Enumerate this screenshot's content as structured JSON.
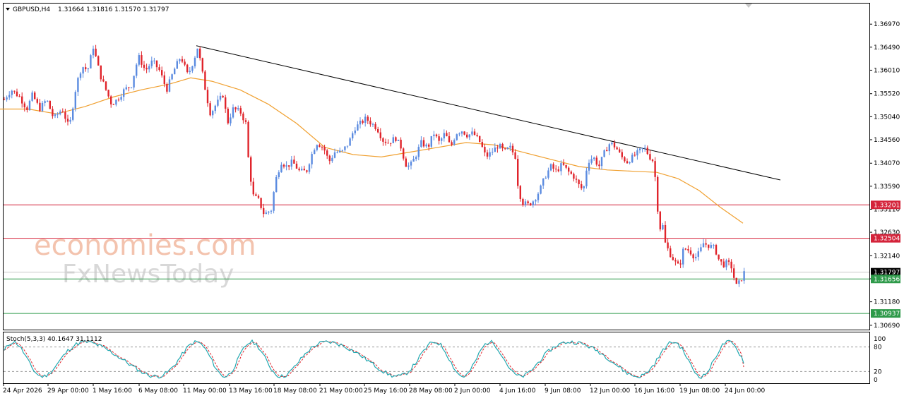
{
  "header": {
    "symbol": "GBPUSD,H4",
    "ohlc": "1.31664 1.31816 1.31570 1.31797"
  },
  "watermark": {
    "brand_line1": "economies.com",
    "brand_line2": "FxNewsToday"
  },
  "chart_data": {
    "type": "candlestick",
    "symbol": "GBPUSD",
    "timeframe": "H4",
    "ohlc": {
      "open": 1.31664,
      "high": 1.31816,
      "low": 1.3157,
      "close": 1.31797
    },
    "ylim": [
      1.306,
      1.374
    ],
    "y_ticks": [
      "1.36970",
      "1.36490",
      "1.36010",
      "1.35520",
      "1.35040",
      "1.34560",
      "1.34070",
      "1.33590",
      "1.33110",
      "1.32630",
      "1.32140",
      "1.31660",
      "1.31180",
      "1.30690"
    ],
    "x_ticks": [
      "24 Apr 2026",
      "29 Apr 00:00",
      "1 May 16:00",
      "6 May 08:00",
      "11 May 00:00",
      "13 May 16:00",
      "18 May 08:00",
      "21 May 00:00",
      "25 May 16:00",
      "28 May 08:00",
      "2 Jun 00:00",
      "4 Jun 16:00",
      "9 Jun 08:00",
      "12 Jun 00:00",
      "16 Jun 16:00",
      "19 Jun 08:00",
      "24 Jun 00:00"
    ],
    "price_path": [
      [
        0,
        1.349
      ],
      [
        6,
        1.354
      ],
      [
        16,
        1.356
      ],
      [
        28,
        1.3545
      ],
      [
        38,
        1.352
      ],
      [
        46,
        1.355
      ],
      [
        56,
        1.352
      ],
      [
        66,
        1.354
      ],
      [
        76,
        1.35
      ],
      [
        88,
        1.352
      ],
      [
        98,
        1.348
      ],
      [
        108,
        1.357
      ],
      [
        116,
        1.361
      ],
      [
        124,
        1.36
      ],
      [
        132,
        1.365
      ],
      [
        142,
        1.359
      ],
      [
        150,
        1.356
      ],
      [
        158,
        1.353
      ],
      [
        166,
        1.354
      ],
      [
        176,
        1.356
      ],
      [
        186,
        1.357
      ],
      [
        196,
        1.363
      ],
      [
        206,
        1.36
      ],
      [
        216,
        1.362
      ],
      [
        226,
        1.36
      ],
      [
        236,
        1.356
      ],
      [
        246,
        1.36
      ],
      [
        256,
        1.363
      ],
      [
        266,
        1.359
      ],
      [
        274,
        1.362
      ],
      [
        280,
        1.365
      ],
      [
        286,
        1.36
      ],
      [
        292,
        1.355
      ],
      [
        298,
        1.351
      ],
      [
        306,
        1.353
      ],
      [
        316,
        1.355
      ],
      [
        322,
        1.349
      ],
      [
        330,
        1.352
      ],
      [
        340,
        1.3515
      ],
      [
        348,
        1.349
      ],
      [
        352,
        1.341
      ],
      [
        358,
        1.334
      ],
      [
        366,
        1.333
      ],
      [
        374,
        1.33
      ],
      [
        384,
        1.331
      ],
      [
        390,
        1.337
      ],
      [
        398,
        1.341
      ],
      [
        406,
        1.34
      ],
      [
        414,
        1.341
      ],
      [
        424,
        1.339
      ],
      [
        434,
        1.339
      ],
      [
        440,
        1.342
      ],
      [
        448,
        1.345
      ],
      [
        458,
        1.344
      ],
      [
        466,
        1.341
      ],
      [
        474,
        1.343
      ],
      [
        484,
        1.343
      ],
      [
        494,
        1.345
      ],
      [
        502,
        1.348
      ],
      [
        510,
        1.349
      ],
      [
        518,
        1.35
      ],
      [
        526,
        1.349
      ],
      [
        534,
        1.348
      ],
      [
        542,
        1.3455
      ],
      [
        550,
        1.345
      ],
      [
        560,
        1.346
      ],
      [
        568,
        1.344
      ],
      [
        574,
        1.3405
      ],
      [
        580,
        1.34
      ],
      [
        588,
        1.342
      ],
      [
        596,
        1.345
      ],
      [
        606,
        1.344
      ],
      [
        614,
        1.347
      ],
      [
        622,
        1.345
      ],
      [
        630,
        1.347
      ],
      [
        638,
        1.344
      ],
      [
        646,
        1.347
      ],
      [
        654,
        1.3475
      ],
      [
        662,
        1.3465
      ],
      [
        670,
        1.347
      ],
      [
        680,
        1.345
      ],
      [
        688,
        1.342
      ],
      [
        696,
        1.343
      ],
      [
        706,
        1.3445
      ],
      [
        714,
        1.343
      ],
      [
        722,
        1.344
      ],
      [
        730,
        1.342
      ],
      [
        734,
        1.335
      ],
      [
        740,
        1.3325
      ],
      [
        748,
        1.332
      ],
      [
        756,
        1.333
      ],
      [
        764,
        1.335
      ],
      [
        772,
        1.338
      ],
      [
        780,
        1.34
      ],
      [
        788,
        1.339
      ],
      [
        796,
        1.3405
      ],
      [
        804,
        1.339
      ],
      [
        812,
        1.338
      ],
      [
        820,
        1.336
      ],
      [
        826,
        1.335
      ],
      [
        832,
        1.341
      ],
      [
        840,
        1.342
      ],
      [
        848,
        1.34
      ],
      [
        856,
        1.343
      ],
      [
        864,
        1.345
      ],
      [
        872,
        1.344
      ],
      [
        880,
        1.342
      ],
      [
        888,
        1.341
      ],
      [
        896,
        1.342
      ],
      [
        904,
        1.343
      ],
      [
        912,
        1.344
      ],
      [
        920,
        1.342
      ],
      [
        926,
        1.341
      ],
      [
        930,
        1.333
      ],
      [
        934,
        1.327
      ],
      [
        938,
        1.328
      ],
      [
        942,
        1.324
      ],
      [
        948,
        1.322
      ],
      [
        956,
        1.32
      ],
      [
        962,
        1.319
      ],
      [
        968,
        1.323
      ],
      [
        976,
        1.3225
      ],
      [
        984,
        1.321
      ],
      [
        990,
        1.322
      ],
      [
        996,
        1.324
      ],
      [
        1004,
        1.3235
      ],
      [
        1012,
        1.323
      ],
      [
        1018,
        1.3205
      ],
      [
        1024,
        1.3195
      ],
      [
        1030,
        1.32
      ],
      [
        1036,
        1.319
      ],
      [
        1042,
        1.315
      ],
      [
        1048,
        1.316
      ],
      [
        1054,
        1.318
      ]
    ],
    "moving_average": [
      [
        0,
        1.352
      ],
      [
        40,
        1.352
      ],
      [
        80,
        1.351
      ],
      [
        120,
        1.3525
      ],
      [
        160,
        1.3545
      ],
      [
        200,
        1.356
      ],
      [
        240,
        1.3572
      ],
      [
        270,
        1.3585
      ],
      [
        300,
        1.3578
      ],
      [
        340,
        1.356
      ],
      [
        380,
        1.353
      ],
      [
        420,
        1.349
      ],
      [
        460,
        1.344
      ],
      [
        500,
        1.3425
      ],
      [
        540,
        1.342
      ],
      [
        580,
        1.343
      ],
      [
        620,
        1.344
      ],
      [
        660,
        1.345
      ],
      [
        700,
        1.3445
      ],
      [
        740,
        1.343
      ],
      [
        780,
        1.3415
      ],
      [
        820,
        1.34
      ],
      [
        860,
        1.3393
      ],
      [
        900,
        1.339
      ],
      [
        930,
        1.3388
      ],
      [
        960,
        1.3375
      ],
      [
        990,
        1.335
      ],
      [
        1020,
        1.3315
      ],
      [
        1052,
        1.3282
      ]
    ],
    "trendline": {
      "from": [
        278,
        1.3652
      ],
      "to": [
        1105,
        1.3372
      ]
    },
    "horizontal_levels": [
      {
        "label": "1.33201",
        "value": 1.33201,
        "color": "#d4233a",
        "tag_color": "#d4233a"
      },
      {
        "label": "1.32504",
        "value": 1.32504,
        "color": "#d4233a",
        "tag_color": "#d4233a"
      },
      {
        "label": "1.31797",
        "value": 1.31797,
        "color": "#c8c8c8",
        "tag_color": "#000000"
      },
      {
        "label": "1.31656",
        "value": 1.31656,
        "color": "#2e9a4a",
        "tag_color": "#2e9a4a"
      },
      {
        "label": "1.30937",
        "value": 1.30937,
        "color": "#2e9a4a",
        "tag_color": "#2e9a4a"
      }
    ],
    "colors": {
      "up": "#5b8be0",
      "down": "#e0242b",
      "ma": "#f0a030",
      "trend": "#000000"
    },
    "stochastic": {
      "label": "Stoch(5,3,3) 40.1647 31.1112",
      "main": 40.1647,
      "signal": 31.1112,
      "levels": [
        80,
        20
      ],
      "axis_labels": [
        "100",
        "80",
        "20",
        "0"
      ],
      "main_color": "#20a8b0",
      "signal_color": "#e0242b"
    }
  }
}
